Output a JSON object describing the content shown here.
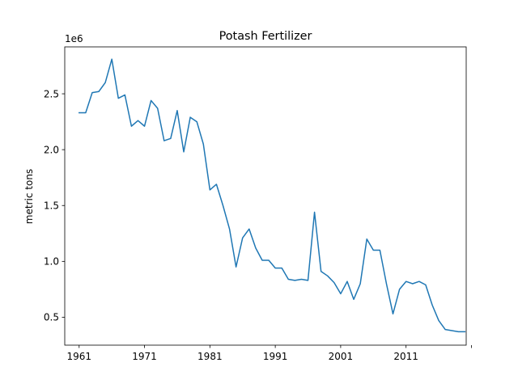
{
  "chart_data": {
    "type": "line",
    "title": "Potash Fertilizer",
    "xlabel": "",
    "ylabel": "metric tons",
    "y_offset_label": "1e6",
    "xlim": [
      1958.8,
      2020.2
    ],
    "ylim": [
      0.25,
      2.92
    ],
    "x_ticks": [
      1961,
      1971,
      1981,
      1991,
      2001,
      2011,
      2021
    ],
    "x_tick_labels": [
      "1961",
      "1971",
      "1981",
      "1991",
      "2001",
      "2011",
      ""
    ],
    "y_ticks": [
      0.5,
      1.0,
      1.5,
      2.0,
      2.5
    ],
    "y_tick_labels": [
      "0.5",
      "1.0",
      "1.5",
      "2.0",
      "2.5"
    ],
    "grid": false,
    "line_color": "#1f77b4",
    "x": [
      1961,
      1962,
      1963,
      1964,
      1965,
      1966,
      1967,
      1968,
      1969,
      1970,
      1971,
      1972,
      1973,
      1974,
      1975,
      1976,
      1977,
      1978,
      1979,
      1980,
      1981,
      1982,
      1983,
      1984,
      1985,
      1986,
      1987,
      1988,
      1989,
      1990,
      1991,
      1992,
      1993,
      1994,
      1995,
      1996,
      1997,
      1998,
      1999,
      2000,
      2001,
      2002,
      2003,
      2004,
      2005,
      2006,
      2007,
      2008,
      2009,
      2010,
      2011,
      2012,
      2013,
      2014,
      2015,
      2016,
      2017,
      2018,
      2019,
      2020
    ],
    "series": [
      {
        "values": [
          2.33,
          2.33,
          2.51,
          2.52,
          2.6,
          2.81,
          2.46,
          2.49,
          2.21,
          2.26,
          2.21,
          2.44,
          2.37,
          2.08,
          2.1,
          2.35,
          1.98,
          2.29,
          2.25,
          2.05,
          1.64,
          1.69,
          1.5,
          1.29,
          0.95,
          1.21,
          1.29,
          1.12,
          1.01,
          1.01,
          0.94,
          0.94,
          0.84,
          0.83,
          0.84,
          0.83,
          1.44,
          0.91,
          0.87,
          0.81,
          0.71,
          0.82,
          0.66,
          0.8,
          1.2,
          1.1,
          1.1,
          0.8,
          0.53,
          0.75,
          0.82,
          0.8,
          0.82,
          0.79,
          0.61,
          0.47,
          0.39,
          0.38,
          0.37,
          0.37
        ]
      }
    ]
  }
}
